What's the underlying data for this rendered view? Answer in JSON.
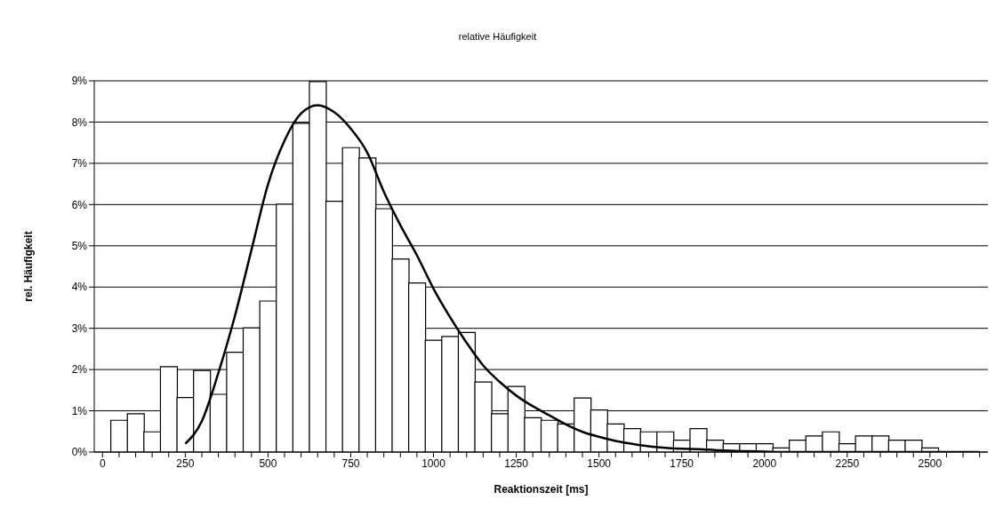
{
  "chart_data": {
    "type": "bar",
    "title": "relative Häufigkeit",
    "xlabel": "Reaktionszeit [ms]",
    "ylabel": "rel. Häufigkeit",
    "categories": [
      "0",
      null,
      null,
      null,
      null,
      "250",
      null,
      null,
      null,
      null,
      "500",
      null,
      null,
      null,
      null,
      "750",
      null,
      null,
      null,
      null,
      "1000",
      null,
      null,
      null,
      null,
      "1250",
      null,
      null,
      null,
      null,
      "1500",
      null,
      null,
      null,
      null,
      "1750",
      null,
      null,
      null,
      null,
      "2000",
      null,
      null,
      null,
      null,
      "2250",
      null,
      null,
      null,
      null,
      "2500",
      null,
      null,
      null
    ],
    "series": [
      {
        "color": "#ffffff",
        "values": [
          null,
          0.77,
          0.93,
          0.49,
          2.07,
          1.32,
          1.98,
          1.4,
          2.42,
          3.01,
          3.66,
          6.01,
          7.97,
          8.98,
          6.08,
          7.38,
          7.13,
          5.9,
          4.68,
          4.1,
          2.71,
          2.8,
          2.9,
          1.7,
          0.93,
          1.59,
          0.83,
          0.77,
          0.68,
          1.31,
          1.02,
          0.68,
          0.57,
          0.49,
          0.49,
          0.29,
          0.57,
          0.29,
          0.2,
          0.2,
          0.2,
          0.1,
          0.29,
          0.39,
          0.49,
          0.2,
          0.39,
          0.39,
          0.29,
          0.29,
          0.1,
          null,
          null,
          null
        ]
      },
      {
        "type": "line",
        "color": "#000000",
        "values": [
          null,
          null,
          null,
          null,
          null,
          0.2,
          0.75,
          1.92,
          3.3,
          4.9,
          6.49,
          7.55,
          8.21,
          8.41,
          8.24,
          7.84,
          7.26,
          6.31,
          5.5,
          4.77,
          3.96,
          3.27,
          2.65,
          2.1,
          1.7,
          1.37,
          1.11,
          0.89,
          0.67,
          0.49,
          0.37,
          0.27,
          0.2,
          0.14,
          0.1,
          0.08,
          0.07,
          0.05,
          0.03,
          0.02,
          0.01,
          0,
          0,
          0,
          0,
          0,
          0,
          0,
          0,
          0,
          0,
          0,
          0,
          0
        ]
      }
    ],
    "ylim": [
      0,
      9
    ],
    "yticks": [
      {
        "value": 0,
        "label": "0%"
      },
      {
        "value": 1,
        "label": "1%"
      },
      {
        "value": 2,
        "label": "2%"
      },
      {
        "value": 3,
        "label": "3%"
      },
      {
        "value": 4,
        "label": "4%"
      },
      {
        "value": 5,
        "label": "5%"
      },
      {
        "value": 6,
        "label": "6%"
      },
      {
        "value": 7,
        "label": "7%"
      },
      {
        "value": 8,
        "label": "8%"
      },
      {
        "value": 9,
        "label": "9%"
      }
    ],
    "grid": "y",
    "marker": "none"
  }
}
